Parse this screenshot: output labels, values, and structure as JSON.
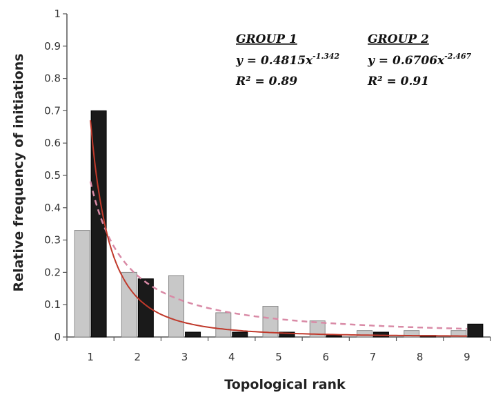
{
  "chart_data": {
    "type": "bar",
    "xlabel": "Topological rank",
    "ylabel": "Relative frequency of initiations",
    "categories": [
      "1",
      "2",
      "3",
      "4",
      "5",
      "6",
      "7",
      "8",
      "9"
    ],
    "ylim": [
      0,
      1
    ],
    "yticks": [
      "0",
      "0.1",
      "0.2",
      "0.3",
      "0.4",
      "0.5",
      "0.6",
      "0.7",
      "0.8",
      "0.9",
      "1"
    ],
    "grid": false,
    "series": [
      {
        "color": "#c8c8c8",
        "values": [
          0.33,
          0.2,
          0.19,
          0.075,
          0.095,
          0.05,
          0.02,
          0.02,
          0.02
        ]
      },
      {
        "color": "#1a1a1a",
        "values": [
          0.7,
          0.18,
          0.015,
          0.015,
          0.015,
          0.005,
          0.015,
          0.005,
          0.04
        ]
      }
    ],
    "fits": [
      {
        "heading": "GROUP 1",
        "equation": "y = 0.4815x",
        "exponent": "-1.342",
        "r2": "R² = 0.89",
        "a": 0.4815,
        "b": -1.342,
        "color": "#d98aa6",
        "dash": "8,6"
      },
      {
        "heading": "GROUP 2",
        "equation": "y = 0.6706x",
        "exponent": "-2.467",
        "r2": "R² = 0.91",
        "a": 0.6706,
        "b": -2.467,
        "color": "#c0392b",
        "dash": ""
      }
    ]
  }
}
